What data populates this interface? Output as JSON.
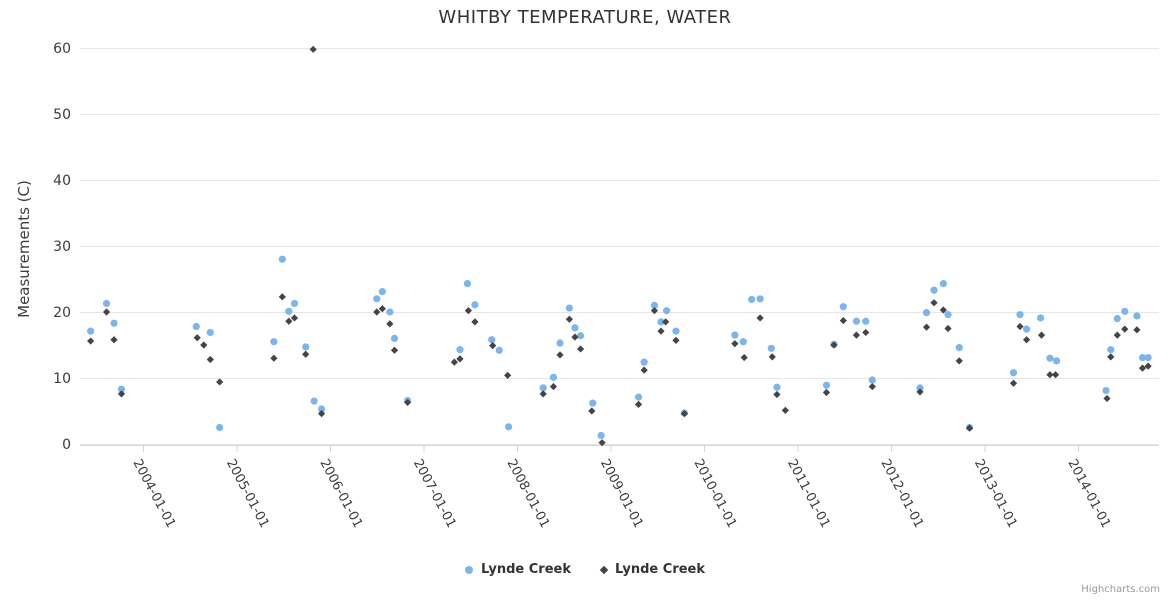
{
  "chart": {
    "title": "WHITBY TEMPERATURE, WATER",
    "yaxis_title": "Measurements (C)",
    "credits": "Highcharts.com"
  },
  "legend": {
    "items": [
      {
        "label": "Lynde Creek",
        "marker": "circle",
        "color": "#7cb5ec"
      },
      {
        "label": "Lynde Creek",
        "marker": "diamond",
        "color": "#434348"
      }
    ]
  },
  "colors": {
    "series_blue": "#7cb5ec",
    "series_dark": "#434348",
    "grid_line": "#e6e6e6",
    "axis_line": "#ccd6eb",
    "tick_label": "#3c3c3c",
    "title_text": "#333333",
    "credits_text": "#999999"
  },
  "chart_data": {
    "type": "scatter",
    "title": "WHITBY TEMPERATURE, WATER",
    "xlabel": "",
    "ylabel": "Measurements (C)",
    "ylim": [
      0,
      60
    ],
    "xlim": [
      2003.33,
      2014.87
    ],
    "grid": "horizontal",
    "legend_position": "bottom",
    "yaxis_ticks": [
      0,
      10,
      20,
      30,
      40,
      50,
      60
    ],
    "xaxis_ticks": [
      {
        "year": 2004,
        "label": "2004-01-01"
      },
      {
        "year": 2005,
        "label": "2005-01-01"
      },
      {
        "year": 2006,
        "label": "2006-01-01"
      },
      {
        "year": 2007,
        "label": "2007-01-01"
      },
      {
        "year": 2008,
        "label": "2008-01-01"
      },
      {
        "year": 2009,
        "label": "2009-01-01"
      },
      {
        "year": 2010,
        "label": "2010-01-01"
      },
      {
        "year": 2011,
        "label": "2011-01-01"
      },
      {
        "year": 2012,
        "label": "2012-01-01"
      },
      {
        "year": 2013,
        "label": "2013-01-01"
      },
      {
        "year": 2014,
        "label": "2014-01-01"
      }
    ],
    "series": [
      {
        "name": "Lynde Creek",
        "marker": "circle",
        "color": "#7cb5ec",
        "points": [
          [
            2003.44,
            17.1
          ],
          [
            2003.61,
            21.3
          ],
          [
            2003.69,
            18.3
          ],
          [
            2003.77,
            8.3
          ],
          [
            2004.57,
            17.8
          ],
          [
            2004.72,
            16.9
          ],
          [
            2004.82,
            2.5
          ],
          [
            2005.4,
            15.5
          ],
          [
            2005.49,
            28.0
          ],
          [
            2005.56,
            20.1
          ],
          [
            2005.62,
            21.3
          ],
          [
            2005.74,
            14.7
          ],
          [
            2005.83,
            6.5
          ],
          [
            2005.91,
            5.3
          ],
          [
            2006.5,
            22.0
          ],
          [
            2006.56,
            23.1
          ],
          [
            2006.64,
            20.0
          ],
          [
            2006.69,
            16.0
          ],
          [
            2006.83,
            6.6
          ],
          [
            2007.39,
            14.3
          ],
          [
            2007.47,
            24.3
          ],
          [
            2007.55,
            21.1
          ],
          [
            2007.73,
            15.8
          ],
          [
            2007.81,
            14.2
          ],
          [
            2007.91,
            2.6
          ],
          [
            2008.28,
            8.5
          ],
          [
            2008.39,
            10.1
          ],
          [
            2008.46,
            15.3
          ],
          [
            2008.56,
            20.6
          ],
          [
            2008.62,
            17.6
          ],
          [
            2008.68,
            16.4
          ],
          [
            2008.81,
            6.2
          ],
          [
            2008.9,
            1.3
          ],
          [
            2009.3,
            7.1
          ],
          [
            2009.36,
            12.4
          ],
          [
            2009.47,
            21.0
          ],
          [
            2009.54,
            18.5
          ],
          [
            2009.6,
            20.2
          ],
          [
            2009.7,
            17.1
          ],
          [
            2009.79,
            4.7
          ],
          [
            2010.33,
            16.5
          ],
          [
            2010.42,
            15.5
          ],
          [
            2010.51,
            21.9
          ],
          [
            2010.6,
            22.0
          ],
          [
            2010.72,
            14.5
          ],
          [
            2010.78,
            8.6
          ],
          [
            2011.31,
            8.9
          ],
          [
            2011.39,
            15.1
          ],
          [
            2011.49,
            20.8
          ],
          [
            2011.63,
            18.6
          ],
          [
            2011.73,
            18.6
          ],
          [
            2011.8,
            9.7
          ],
          [
            2012.31,
            8.5
          ],
          [
            2012.38,
            19.9
          ],
          [
            2012.46,
            23.3
          ],
          [
            2012.56,
            24.3
          ],
          [
            2012.61,
            19.6
          ],
          [
            2012.73,
            14.6
          ],
          [
            2012.84,
            2.5
          ],
          [
            2013.31,
            10.8
          ],
          [
            2013.38,
            19.6
          ],
          [
            2013.45,
            17.4
          ],
          [
            2013.6,
            19.1
          ],
          [
            2013.7,
            13.0
          ],
          [
            2013.77,
            12.6
          ],
          [
            2014.3,
            8.1
          ],
          [
            2014.35,
            14.3
          ],
          [
            2014.42,
            19.0
          ],
          [
            2014.5,
            20.1
          ],
          [
            2014.63,
            19.4
          ],
          [
            2014.69,
            13.1
          ],
          [
            2014.75,
            13.1
          ]
        ]
      },
      {
        "name": "Lynde Creek",
        "marker": "diamond",
        "color": "#434348",
        "points": [
          [
            2003.44,
            15.6
          ],
          [
            2003.61,
            20.0
          ],
          [
            2003.69,
            15.8
          ],
          [
            2003.77,
            7.6
          ],
          [
            2004.58,
            16.1
          ],
          [
            2004.65,
            15.0
          ],
          [
            2004.72,
            12.8
          ],
          [
            2004.82,
            9.4
          ],
          [
            2005.4,
            13.0
          ],
          [
            2005.49,
            22.3
          ],
          [
            2005.56,
            18.6
          ],
          [
            2005.62,
            19.1
          ],
          [
            2005.74,
            13.6
          ],
          [
            2005.82,
            59.8
          ],
          [
            2005.91,
            4.6
          ],
          [
            2006.5,
            20.0
          ],
          [
            2006.56,
            20.5
          ],
          [
            2006.64,
            18.2
          ],
          [
            2006.69,
            14.2
          ],
          [
            2006.83,
            6.3
          ],
          [
            2007.33,
            12.4
          ],
          [
            2007.39,
            12.9
          ],
          [
            2007.48,
            20.2
          ],
          [
            2007.55,
            18.5
          ],
          [
            2007.74,
            14.9
          ],
          [
            2007.9,
            10.4
          ],
          [
            2008.28,
            7.6
          ],
          [
            2008.39,
            8.7
          ],
          [
            2008.46,
            13.5
          ],
          [
            2008.56,
            18.9
          ],
          [
            2008.62,
            16.2
          ],
          [
            2008.68,
            14.4
          ],
          [
            2008.8,
            5.0
          ],
          [
            2008.91,
            0.2
          ],
          [
            2009.3,
            6.0
          ],
          [
            2009.36,
            11.2
          ],
          [
            2009.47,
            20.2
          ],
          [
            2009.54,
            17.1
          ],
          [
            2009.59,
            18.5
          ],
          [
            2009.7,
            15.7
          ],
          [
            2009.79,
            4.6
          ],
          [
            2010.33,
            15.2
          ],
          [
            2010.43,
            13.1
          ],
          [
            2010.6,
            19.1
          ],
          [
            2010.73,
            13.2
          ],
          [
            2010.78,
            7.5
          ],
          [
            2010.87,
            5.1
          ],
          [
            2011.31,
            7.8
          ],
          [
            2011.39,
            15.0
          ],
          [
            2011.49,
            18.7
          ],
          [
            2011.63,
            16.5
          ],
          [
            2011.73,
            16.9
          ],
          [
            2011.8,
            8.7
          ],
          [
            2012.31,
            7.9
          ],
          [
            2012.38,
            17.7
          ],
          [
            2012.46,
            21.4
          ],
          [
            2012.56,
            20.3
          ],
          [
            2012.61,
            17.5
          ],
          [
            2012.73,
            12.6
          ],
          [
            2012.84,
            2.4
          ],
          [
            2013.31,
            9.2
          ],
          [
            2013.38,
            17.8
          ],
          [
            2013.45,
            15.8
          ],
          [
            2013.61,
            16.5
          ],
          [
            2013.7,
            10.5
          ],
          [
            2013.76,
            10.5
          ],
          [
            2014.31,
            6.9
          ],
          [
            2014.35,
            13.2
          ],
          [
            2014.42,
            16.5
          ],
          [
            2014.5,
            17.4
          ],
          [
            2014.63,
            17.3
          ],
          [
            2014.69,
            11.5
          ],
          [
            2014.75,
            11.8
          ]
        ]
      }
    ]
  }
}
